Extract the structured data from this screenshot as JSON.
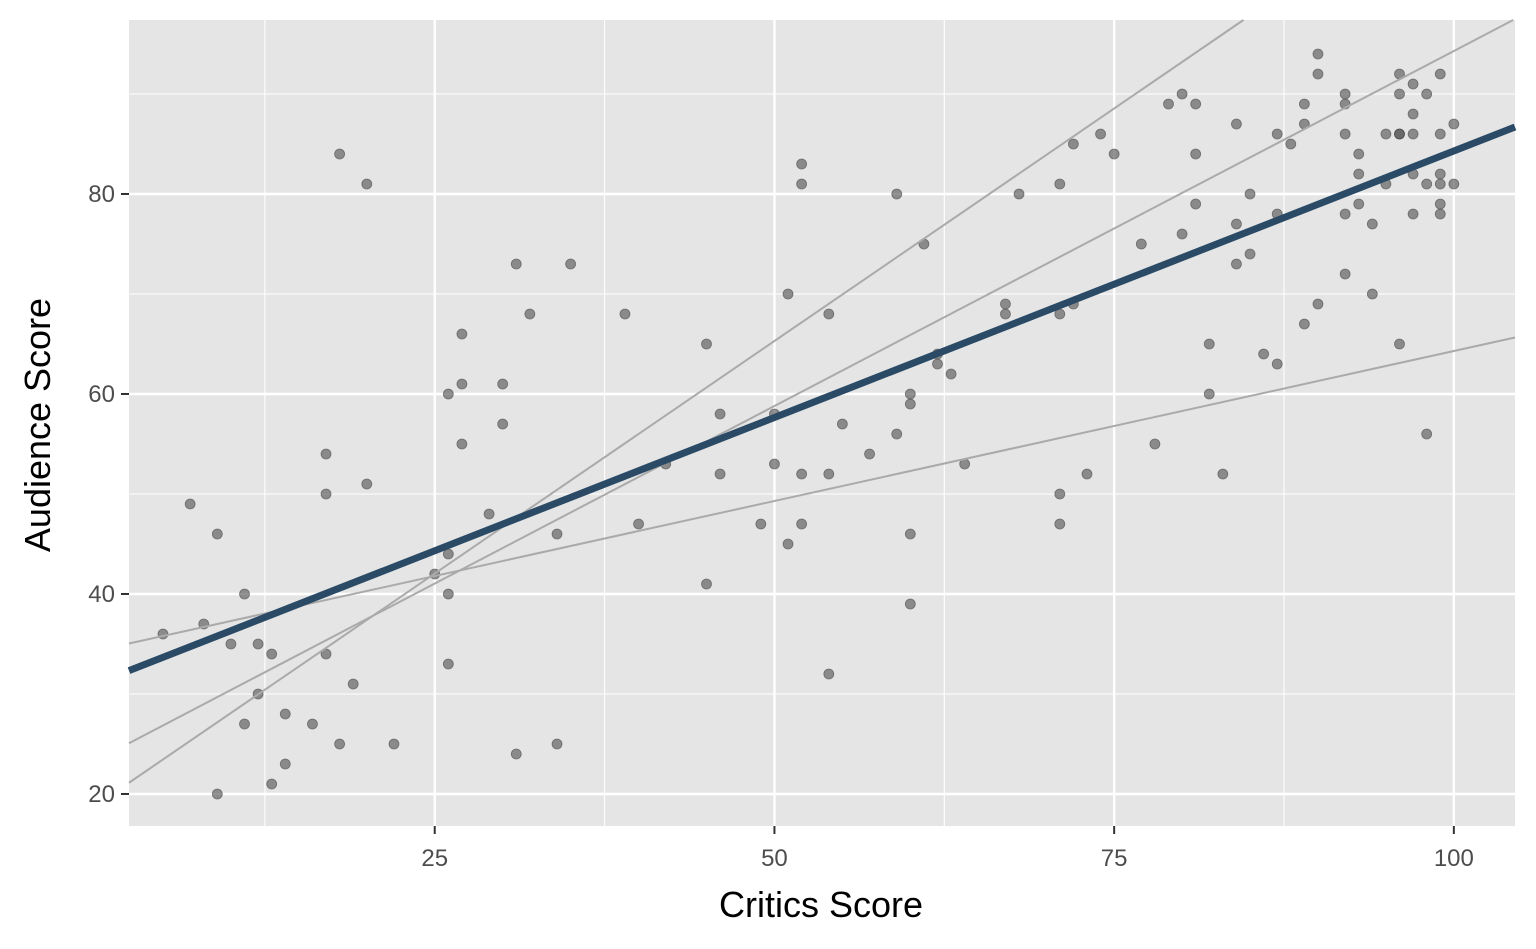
{
  "chart_data": {
    "type": "scatter",
    "xlabel": "Critics Score",
    "ylabel": "Audience Score",
    "xlim": [
      2.5,
      104.5
    ],
    "ylim": [
      16.8,
      97.4
    ],
    "x_ticks": [
      25,
      50,
      75,
      100
    ],
    "y_ticks": [
      20,
      40,
      60,
      80
    ],
    "x_tick_labels": [
      "25",
      "50",
      "75",
      "100"
    ],
    "y_tick_labels": [
      "20",
      "40",
      "60",
      "80"
    ],
    "grid": true,
    "legend": "none",
    "colors": {
      "panel_background": "#e5e5e5",
      "grid_line": "#ffffff",
      "point": "#595959",
      "fit_line": "#2a4a66",
      "sample_lines": "#aaaaaa"
    },
    "points": [
      [
        5,
        36
      ],
      [
        7,
        49
      ],
      [
        8,
        37
      ],
      [
        9,
        46
      ],
      [
        9,
        20
      ],
      [
        10,
        35
      ],
      [
        11,
        40
      ],
      [
        11,
        27
      ],
      [
        12,
        35
      ],
      [
        12,
        30
      ],
      [
        13,
        34
      ],
      [
        13,
        21
      ],
      [
        14,
        28
      ],
      [
        14,
        23
      ],
      [
        16,
        27
      ],
      [
        17,
        54
      ],
      [
        17,
        50
      ],
      [
        17,
        34
      ],
      [
        18,
        84
      ],
      [
        18,
        25
      ],
      [
        19,
        31
      ],
      [
        20,
        81
      ],
      [
        20,
        51
      ],
      [
        22,
        25
      ],
      [
        25,
        42
      ],
      [
        26,
        60
      ],
      [
        26,
        44
      ],
      [
        26,
        40
      ],
      [
        26,
        33
      ],
      [
        27,
        66
      ],
      [
        27,
        61
      ],
      [
        27,
        55
      ],
      [
        29,
        48
      ],
      [
        30,
        61
      ],
      [
        30,
        57
      ],
      [
        31,
        73
      ],
      [
        31,
        24
      ],
      [
        32,
        68
      ],
      [
        34,
        46
      ],
      [
        34,
        25
      ],
      [
        35,
        73
      ],
      [
        39,
        68
      ],
      [
        40,
        47
      ],
      [
        42,
        53
      ],
      [
        45,
        65
      ],
      [
        45,
        41
      ],
      [
        46,
        58
      ],
      [
        46,
        52
      ],
      [
        49,
        47
      ],
      [
        50,
        58
      ],
      [
        50,
        53
      ],
      [
        51,
        70
      ],
      [
        51,
        45
      ],
      [
        52,
        83
      ],
      [
        52,
        81
      ],
      [
        52,
        52
      ],
      [
        52,
        47
      ],
      [
        54,
        68
      ],
      [
        54,
        52
      ],
      [
        54,
        32
      ],
      [
        55,
        57
      ],
      [
        57,
        54
      ],
      [
        59,
        80
      ],
      [
        59,
        56
      ],
      [
        60,
        60
      ],
      [
        60,
        59
      ],
      [
        60,
        46
      ],
      [
        60,
        39
      ],
      [
        61,
        75
      ],
      [
        62,
        64
      ],
      [
        62,
        63
      ],
      [
        63,
        62
      ],
      [
        64,
        53
      ],
      [
        67,
        69
      ],
      [
        67,
        68
      ],
      [
        68,
        80
      ],
      [
        71,
        81
      ],
      [
        71,
        68
      ],
      [
        71,
        50
      ],
      [
        71,
        47
      ],
      [
        72,
        85
      ],
      [
        72,
        69
      ],
      [
        73,
        52
      ],
      [
        74,
        86
      ],
      [
        75,
        84
      ],
      [
        77,
        75
      ],
      [
        78,
        55
      ],
      [
        79,
        89
      ],
      [
        80,
        90
      ],
      [
        80,
        76
      ],
      [
        81,
        89
      ],
      [
        81,
        84
      ],
      [
        81,
        79
      ],
      [
        82,
        65
      ],
      [
        82,
        60
      ],
      [
        83,
        52
      ],
      [
        84,
        87
      ],
      [
        84,
        77
      ],
      [
        84,
        73
      ],
      [
        85,
        80
      ],
      [
        85,
        74
      ],
      [
        86,
        64
      ],
      [
        87,
        86
      ],
      [
        87,
        78
      ],
      [
        87,
        63
      ],
      [
        88,
        85
      ],
      [
        89,
        89
      ],
      [
        89,
        87
      ],
      [
        89,
        67
      ],
      [
        90,
        94
      ],
      [
        90,
        92
      ],
      [
        90,
        69
      ],
      [
        92,
        90
      ],
      [
        92,
        89
      ],
      [
        92,
        86
      ],
      [
        92,
        78
      ],
      [
        92,
        72
      ],
      [
        93,
        84
      ],
      [
        93,
        82
      ],
      [
        93,
        79
      ],
      [
        94,
        77
      ],
      [
        94,
        70
      ],
      [
        95,
        86
      ],
      [
        95,
        81
      ],
      [
        96,
        92
      ],
      [
        96,
        90
      ],
      [
        96,
        86
      ],
      [
        96,
        86
      ],
      [
        96,
        65
      ],
      [
        97,
        91
      ],
      [
        97,
        88
      ],
      [
        97,
        86
      ],
      [
        97,
        82
      ],
      [
        97,
        78
      ],
      [
        98,
        90
      ],
      [
        98,
        81
      ],
      [
        98,
        56
      ],
      [
        99,
        92
      ],
      [
        99,
        86
      ],
      [
        99,
        82
      ],
      [
        99,
        81
      ],
      [
        99,
        79
      ],
      [
        99,
        78
      ],
      [
        100,
        87
      ],
      [
        100,
        81
      ]
    ],
    "fit_line": {
      "slope": 0.533,
      "intercept": 31.0
    },
    "sample_lines": [
      {
        "slope": 0.3,
        "intercept": 34.3
      },
      {
        "slope": 0.71,
        "intercept": 23.3
      },
      {
        "slope": 0.93,
        "intercept": 18.8
      }
    ]
  }
}
